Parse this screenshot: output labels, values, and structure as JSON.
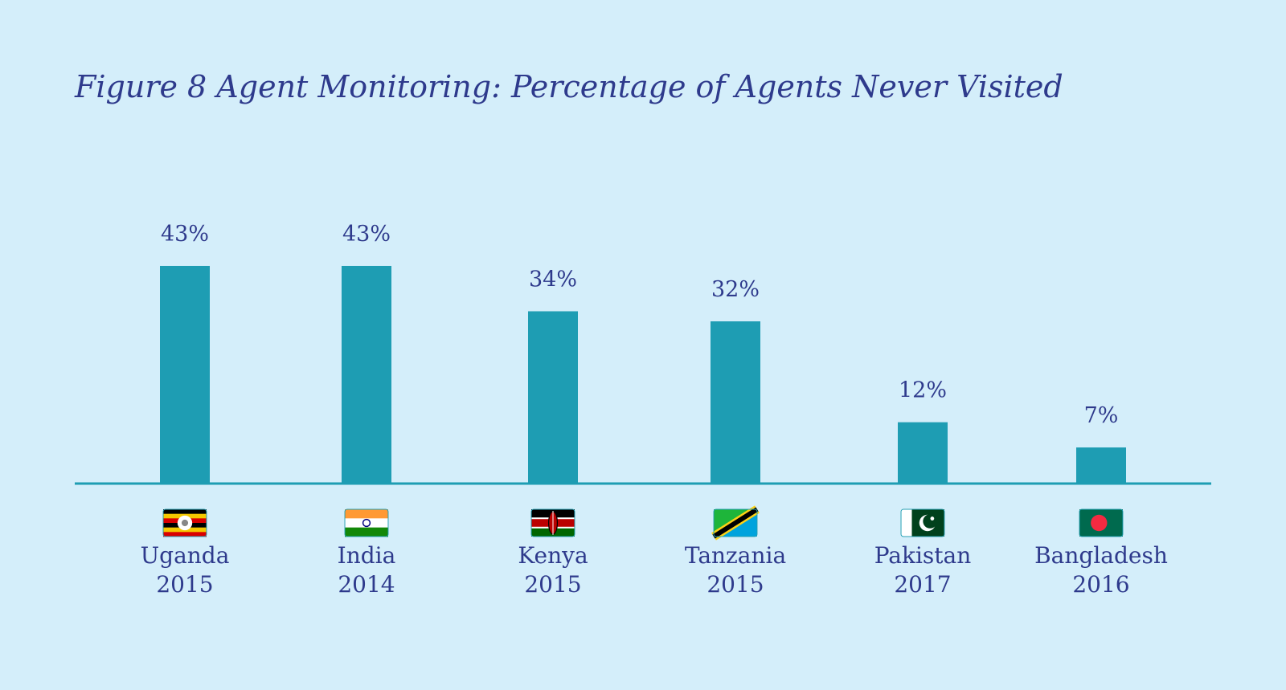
{
  "chart_data": {
    "type": "bar",
    "title": "Figure 8 Agent Monitoring: Percentage of Agents Never Visited",
    "categories": [
      {
        "country": "Uganda",
        "year": "2015",
        "flag": "uganda-flag-icon"
      },
      {
        "country": "India",
        "year": "2014",
        "flag": "india-flag-icon"
      },
      {
        "country": "Kenya",
        "year": "2015",
        "flag": "kenya-flag-icon"
      },
      {
        "country": "Tanzania",
        "year": "2015",
        "flag": "tanzania-flag-icon"
      },
      {
        "country": "Pakistan",
        "year": "2017",
        "flag": "pakistan-flag-icon"
      },
      {
        "country": "Bangladesh",
        "year": "2016",
        "flag": "bangladesh-flag-icon"
      }
    ],
    "values": [
      43,
      43,
      34,
      32,
      12,
      7
    ],
    "value_labels": [
      "43%",
      "43%",
      "34%",
      "32%",
      "12%",
      "7%"
    ],
    "ylim": [
      0,
      50
    ],
    "grid": false,
    "legend": "none"
  },
  "colors": {
    "background": "#d4eefa",
    "bar": "#1e9db3",
    "axis": "#1e9db3",
    "text": "#2e3a8c"
  }
}
